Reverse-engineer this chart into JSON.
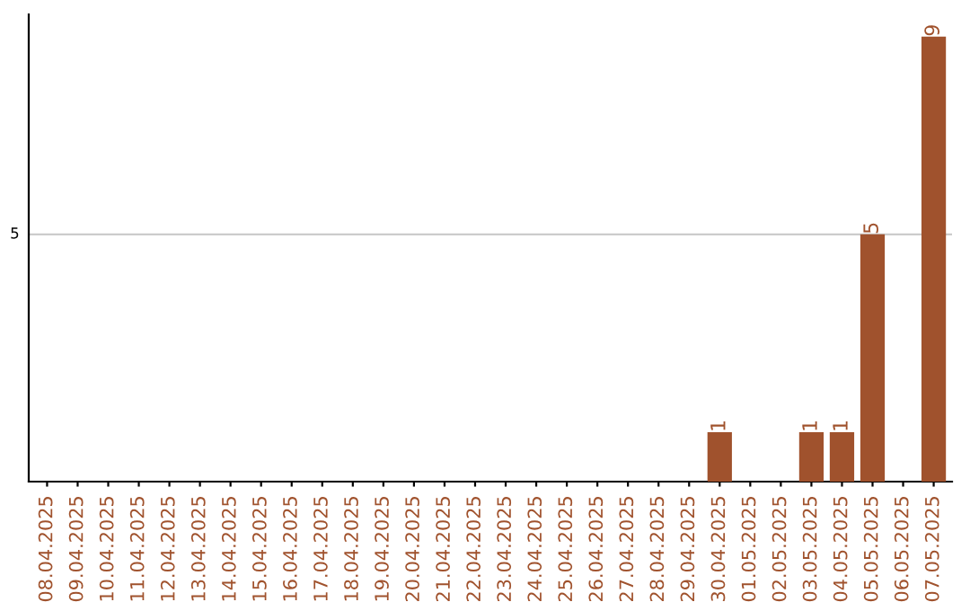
{
  "chart_data": {
    "type": "bar",
    "categories": [
      "08.04.2025",
      "09.04.2025",
      "10.04.2025",
      "11.04.2025",
      "12.04.2025",
      "13.04.2025",
      "14.04.2025",
      "15.04.2025",
      "16.04.2025",
      "17.04.2025",
      "18.04.2025",
      "19.04.2025",
      "20.04.2025",
      "21.04.2025",
      "22.04.2025",
      "23.04.2025",
      "24.04.2025",
      "25.04.2025",
      "26.04.2025",
      "27.04.2025",
      "28.04.2025",
      "29.04.2025",
      "30.04.2025",
      "01.05.2025",
      "02.05.2025",
      "03.05.2025",
      "04.05.2025",
      "05.05.2025",
      "06.05.2025",
      "07.05.2025"
    ],
    "values": [
      null,
      null,
      null,
      null,
      null,
      null,
      null,
      null,
      null,
      null,
      null,
      null,
      null,
      null,
      null,
      null,
      null,
      null,
      null,
      null,
      null,
      null,
      1,
      null,
      null,
      1,
      1,
      5,
      null,
      9
    ],
    "data_labels": true,
    "color": "#a0522d",
    "ylim": [
      0,
      9.45
    ],
    "ref_lines": [
      {
        "axis": "y",
        "value": 5,
        "label": "5",
        "color": "#cccccc"
      }
    ]
  }
}
